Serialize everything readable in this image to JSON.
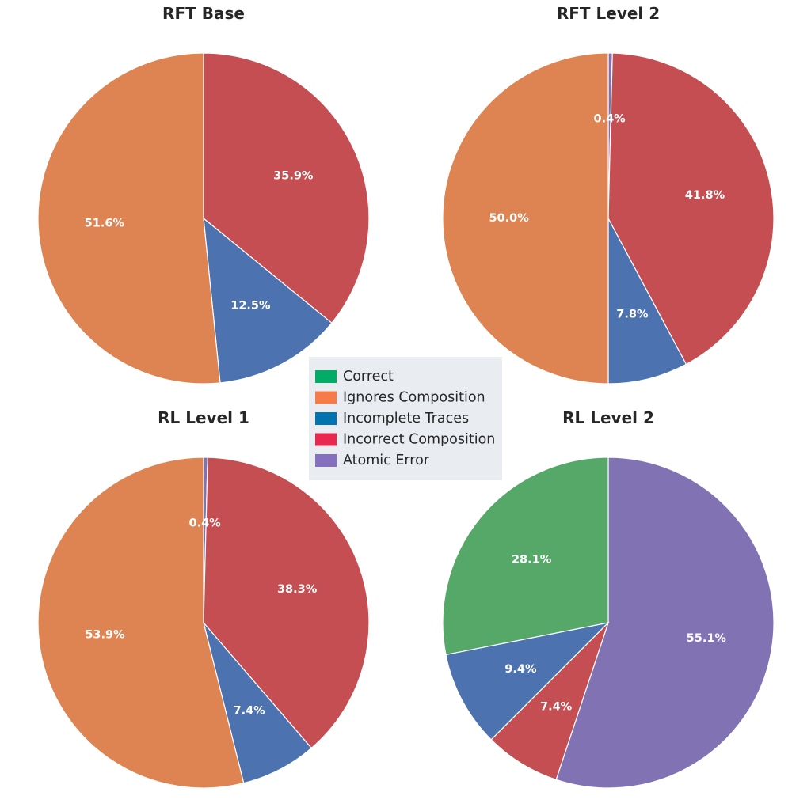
{
  "chart_data": [
    {
      "type": "pie",
      "title": "RFT Base",
      "slices": [
        {
          "label": "Atomic Error",
          "value": 0,
          "color": "#8172b3",
          "text": ""
        },
        {
          "label": "Incorrect Composition",
          "value": 35.9,
          "color": "#c44e52",
          "text": "35.9%"
        },
        {
          "label": "Incomplete Traces",
          "value": 12.5,
          "color": "#4c72b0",
          "text": "12.5%"
        },
        {
          "label": "Ignores Composition",
          "value": 51.6,
          "color": "#dd8452",
          "text": "51.6%"
        }
      ]
    },
    {
      "type": "pie",
      "title": "RFT Level 2",
      "slices": [
        {
          "label": "Atomic Error",
          "value": 0.4,
          "color": "#8172b3",
          "text": "0.4%"
        },
        {
          "label": "Incorrect Composition",
          "value": 41.8,
          "color": "#c44e52",
          "text": "41.8%"
        },
        {
          "label": "Incomplete Traces",
          "value": 7.8,
          "color": "#4c72b0",
          "text": "7.8%"
        },
        {
          "label": "Ignores Composition",
          "value": 50.0,
          "color": "#dd8452",
          "text": "50.0%"
        }
      ]
    },
    {
      "type": "pie",
      "title": "RL Level 1",
      "slices": [
        {
          "label": "Atomic Error",
          "value": 0.4,
          "color": "#8172b3",
          "text": "0.4%"
        },
        {
          "label": "Incorrect Composition",
          "value": 38.3,
          "color": "#c44e52",
          "text": "38.3%"
        },
        {
          "label": "Incomplete Traces",
          "value": 7.4,
          "color": "#4c72b0",
          "text": "7.4%"
        },
        {
          "label": "Ignores Composition",
          "value": 53.9,
          "color": "#dd8452",
          "text": "53.9%"
        }
      ]
    },
    {
      "type": "pie",
      "title": "RL Level 2",
      "slices": [
        {
          "label": "Atomic Error",
          "value": 55.1,
          "color": "#8172b3",
          "text": "55.1%"
        },
        {
          "label": "Incorrect Composition",
          "value": 7.4,
          "color": "#c44e52",
          "text": "7.4%"
        },
        {
          "label": "Incomplete Traces",
          "value": 9.4,
          "color": "#4c72b0",
          "text": "9.4%"
        },
        {
          "label": "Correct",
          "value": 28.1,
          "color": "#55a868",
          "text": "28.1%"
        }
      ]
    }
  ],
  "legend": {
    "placement": "center",
    "items": [
      {
        "label": "Correct",
        "color": "#03ac66"
      },
      {
        "label": "Ignores Composition",
        "color": "#f57c49"
      },
      {
        "label": "Incomplete Traces",
        "color": "#0073b0"
      },
      {
        "label": "Incorrect Composition",
        "color": "#e8284f"
      },
      {
        "label": "Atomic Error",
        "color": "#8470bf"
      }
    ]
  }
}
